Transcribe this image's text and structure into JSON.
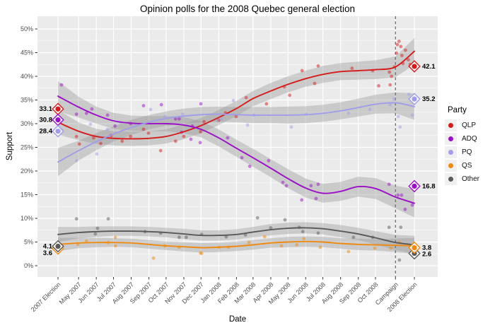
{
  "title": "Opinion polls for the 2008 Quebec general election",
  "x_label": "Date",
  "y_label": "Support",
  "legend": {
    "title": "Party",
    "items": [
      {
        "label": "QLP",
        "color": "#d31d1d"
      },
      {
        "label": "ADQ",
        "color": "#9a10c6"
      },
      {
        "label": "PQ",
        "color": "#a19de8"
      },
      {
        "label": "QS",
        "color": "#ee8a14"
      },
      {
        "label": "Other",
        "color": "#595959"
      }
    ]
  },
  "chart_data": {
    "type": "scatter",
    "title": "Opinion polls for the 2008 Quebec general election",
    "xlabel": "Date",
    "ylabel": "Support",
    "ylim": [
      0,
      50
    ],
    "grid": true,
    "legend_position": "right",
    "panel_bg": "#ebebeb",
    "grid_color": "#ffffff",
    "tick_text_color": "#4d4d4d",
    "ribbon_color": "#999999",
    "ribbon_opacity": 0.4,
    "campaign_line": {
      "t": 0.947,
      "color": "#6e6e6e"
    },
    "y_ticks": [
      {
        "v": 0,
        "label": "0%"
      },
      {
        "v": 5,
        "label": "5%"
      },
      {
        "v": 10,
        "label": "10%"
      },
      {
        "v": 15,
        "label": "15%"
      },
      {
        "v": 20,
        "label": "20%"
      },
      {
        "v": 25,
        "label": "25%"
      },
      {
        "v": 30,
        "label": "30%"
      },
      {
        "v": 35,
        "label": "35%"
      },
      {
        "v": 40,
        "label": "40%"
      },
      {
        "v": 45,
        "label": "45%"
      },
      {
        "v": 50,
        "label": "50%"
      }
    ],
    "x_ticks": [
      {
        "t": 0.0,
        "label": "2007 Election"
      },
      {
        "t": 0.0578,
        "label": "May 2007"
      },
      {
        "t": 0.1075,
        "label": "Jun 2007"
      },
      {
        "t": 0.1557,
        "label": "Jul 2007"
      },
      {
        "t": 0.2054,
        "label": "Aug 2007"
      },
      {
        "t": 0.2552,
        "label": "Sep 2007"
      },
      {
        "t": 0.3034,
        "label": "Oct 2007"
      },
      {
        "t": 0.3531,
        "label": "Nov 2007"
      },
      {
        "t": 0.4013,
        "label": "Dec 2007"
      },
      {
        "t": 0.451,
        "label": "Jan 2008"
      },
      {
        "t": 0.5008,
        "label": "Feb 2008"
      },
      {
        "t": 0.5473,
        "label": "Mar 2008"
      },
      {
        "t": 0.5971,
        "label": "Apr 2008"
      },
      {
        "t": 0.6453,
        "label": "May 2008"
      },
      {
        "t": 0.695,
        "label": "Jun 2008"
      },
      {
        "t": 0.7432,
        "label": "Jul 2008"
      },
      {
        "t": 0.793,
        "label": "Aug 2008"
      },
      {
        "t": 0.8427,
        "label": "Sep 2008"
      },
      {
        "t": 0.8909,
        "label": "Oct 2008"
      },
      {
        "t": 0.947,
        "label": "Campaign"
      },
      {
        "t": 1.0,
        "label": "2008 Election"
      }
    ],
    "series": [
      {
        "name": "QLP",
        "color": "#d31d1d",
        "smooth": [
          30.3,
          28.4,
          27.3,
          26.9,
          26.8,
          26.9,
          27.3,
          28.3,
          29.6,
          31.3,
          33.2,
          35.3,
          36.9,
          38.3,
          39.5,
          40.4,
          41.0,
          41.2,
          41.4,
          42.0,
          45.3
        ],
        "band": [
          2.6,
          1.9,
          1.6,
          1.5,
          1.5,
          1.5,
          1.5,
          1.6,
          1.6,
          1.6,
          1.6,
          1.6,
          1.7,
          1.7,
          1.7,
          1.8,
          1.8,
          1.9,
          2.0,
          2.2,
          2.8
        ],
        "e2007": 33.1,
        "e2008": 42.1,
        "points": [
          [
            0.01,
            28.5
          ],
          [
            0.052,
            27.3
          ],
          [
            0.06,
            25.7
          ],
          [
            0.1,
            27.0
          ],
          [
            0.12,
            25.8
          ],
          [
            0.149,
            27.5
          ],
          [
            0.18,
            26.3
          ],
          [
            0.204,
            27.3
          ],
          [
            0.24,
            28.8
          ],
          [
            0.254,
            28.0
          ],
          [
            0.288,
            24.3
          ],
          [
            0.33,
            26.3
          ],
          [
            0.353,
            27.3
          ],
          [
            0.4,
            28.3
          ],
          [
            0.41,
            30.4
          ],
          [
            0.451,
            30.7
          ],
          [
            0.47,
            32.3
          ],
          [
            0.5,
            31.5
          ],
          [
            0.528,
            35.5
          ],
          [
            0.585,
            34.2
          ],
          [
            0.635,
            37.8
          ],
          [
            0.65,
            36.0
          ],
          [
            0.685,
            41.2
          ],
          [
            0.72,
            38.5
          ],
          [
            0.73,
            42.2
          ],
          [
            0.825,
            41.7
          ],
          [
            0.883,
            41.2
          ],
          [
            0.9,
            38.0
          ],
          [
            0.93,
            40.9
          ],
          [
            0.932,
            38.2
          ],
          [
            0.936,
            40.0
          ],
          [
            0.944,
            42.0
          ],
          [
            0.95,
            44.9
          ],
          [
            0.952,
            46.7
          ],
          [
            0.957,
            47.4
          ],
          [
            0.962,
            46.3
          ],
          [
            0.965,
            44.4
          ],
          [
            0.968,
            42.7
          ],
          [
            0.975,
            45.5
          ],
          [
            0.983,
            43.5
          ],
          [
            0.988,
            42.5
          ]
        ]
      },
      {
        "name": "ADQ",
        "color": "#9a10c6",
        "smooth": [
          35.8,
          33.5,
          31.8,
          30.6,
          30.1,
          30.0,
          30.0,
          29.7,
          28.8,
          27.0,
          24.8,
          22.8,
          20.6,
          18.4,
          16.4,
          15.3,
          15.7,
          16.7,
          16.3,
          14.5,
          13.2
        ],
        "band": [
          3.2,
          2.2,
          1.8,
          1.7,
          1.6,
          1.6,
          1.6,
          1.7,
          1.7,
          1.8,
          1.8,
          1.9,
          1.9,
          2.0,
          2.0,
          2.0,
          2.0,
          2.1,
          2.2,
          2.4,
          3.0
        ],
        "e2007": 30.8,
        "e2008": 16.8,
        "points": [
          [
            0.01,
            38.2
          ],
          [
            0.052,
            32.0
          ],
          [
            0.08,
            32.2
          ],
          [
            0.095,
            33.1
          ],
          [
            0.139,
            31.8
          ],
          [
            0.16,
            29.5
          ],
          [
            0.204,
            30.0
          ],
          [
            0.24,
            33.8
          ],
          [
            0.29,
            34.0
          ],
          [
            0.33,
            31.0
          ],
          [
            0.34,
            31.0
          ],
          [
            0.347,
            28.2
          ],
          [
            0.373,
            26.7
          ],
          [
            0.377,
            29.5
          ],
          [
            0.399,
            26.0
          ],
          [
            0.401,
            34.2
          ],
          [
            0.476,
            27.0
          ],
          [
            0.516,
            22.8
          ],
          [
            0.538,
            21.0
          ],
          [
            0.591,
            22.2
          ],
          [
            0.631,
            17.6
          ],
          [
            0.641,
            16.9
          ],
          [
            0.684,
            13.9
          ],
          [
            0.71,
            16.9
          ],
          [
            0.724,
            14.2
          ],
          [
            0.73,
            17.2
          ],
          [
            0.929,
            17.2
          ],
          [
            0.954,
            14.9
          ],
          [
            0.964,
            14.9
          ],
          [
            0.974,
            11.9
          ],
          [
            0.994,
            12.8
          ]
        ]
      },
      {
        "name": "PQ",
        "color": "#a19de8",
        "smooth": [
          21.9,
          24.3,
          26.2,
          27.8,
          29.2,
          30.3,
          31.1,
          31.6,
          31.9,
          32.0,
          31.9,
          31.8,
          31.8,
          31.8,
          31.9,
          32.2,
          32.7,
          33.4,
          34.1,
          34.4,
          33.6
        ],
        "band": [
          3.0,
          2.1,
          1.8,
          1.6,
          1.6,
          1.5,
          1.5,
          1.6,
          1.6,
          1.6,
          1.6,
          1.7,
          1.7,
          1.8,
          1.8,
          1.8,
          1.8,
          1.9,
          2.0,
          2.2,
          2.8
        ],
        "e2007": 28.4,
        "e2008": 35.2,
        "points": [
          [
            0.052,
            22.2
          ],
          [
            0.091,
            29.9
          ],
          [
            0.109,
            23.6
          ],
          [
            0.139,
            28.8
          ],
          [
            0.175,
            30.3
          ],
          [
            0.26,
            33.0
          ],
          [
            0.3,
            31.5
          ],
          [
            0.35,
            32.0
          ],
          [
            0.448,
            30.7
          ],
          [
            0.46,
            31.0
          ],
          [
            0.492,
            34.9
          ],
          [
            0.532,
            29.7
          ],
          [
            0.55,
            31.8
          ],
          [
            0.655,
            29.3
          ],
          [
            0.696,
            32.0
          ],
          [
            0.815,
            32.2
          ],
          [
            0.875,
            33.0
          ],
          [
            0.932,
            34.0
          ],
          [
            0.943,
            35.2
          ],
          [
            0.955,
            31.5
          ],
          [
            0.96,
            29.3
          ],
          [
            0.985,
            36.2
          ],
          [
            0.994,
            31.8
          ]
        ]
      },
      {
        "name": "QS",
        "color": "#ee8a14",
        "smooth": [
          4.5,
          4.8,
          4.9,
          4.9,
          4.8,
          4.5,
          4.2,
          4.0,
          3.8,
          3.9,
          4.1,
          4.4,
          4.8,
          5.0,
          5.1,
          5.0,
          4.7,
          4.5,
          4.4,
          4.3,
          4.2
        ],
        "band": [
          1.4,
          1.1,
          1.0,
          0.9,
          0.9,
          0.9,
          0.9,
          1.0,
          1.0,
          1.0,
          1.0,
          1.0,
          1.0,
          1.1,
          1.1,
          1.1,
          1.1,
          1.2,
          1.2,
          1.4,
          1.7
        ],
        "e2007": 3.6,
        "e2008": 3.8,
        "points": [
          [
            0.056,
            4.5
          ],
          [
            0.08,
            5.2
          ],
          [
            0.141,
            4.9
          ],
          [
            0.161,
            6.0
          ],
          [
            0.161,
            4.2
          ],
          [
            0.268,
            1.6
          ],
          [
            0.3,
            4.2
          ],
          [
            0.34,
            3.9
          ],
          [
            0.4,
            2.7
          ],
          [
            0.403,
            2.6
          ],
          [
            0.452,
            3.9
          ],
          [
            0.478,
            3.9
          ],
          [
            0.536,
            4.9
          ],
          [
            0.58,
            6.1
          ],
          [
            0.627,
            4.2
          ],
          [
            0.67,
            4.4
          ],
          [
            0.69,
            5.7
          ],
          [
            0.736,
            3.9
          ],
          [
            0.815,
            3.0
          ],
          [
            0.889,
            3.7
          ],
          [
            0.934,
            3.7
          ],
          [
            0.958,
            4.9
          ]
        ]
      },
      {
        "name": "Other",
        "color": "#595959",
        "smooth": [
          6.6,
          7.0,
          7.2,
          7.3,
          7.3,
          7.2,
          7.0,
          6.7,
          6.4,
          6.4,
          6.6,
          7.1,
          7.6,
          7.9,
          8.0,
          7.8,
          7.3,
          6.7,
          5.9,
          4.9,
          4.4
        ],
        "band": [
          1.6,
          1.2,
          1.1,
          1.0,
          1.0,
          1.0,
          1.0,
          1.1,
          1.1,
          1.1,
          1.1,
          1.1,
          1.2,
          1.2,
          1.2,
          1.2,
          1.3,
          1.3,
          1.4,
          1.6,
          1.9
        ],
        "e2007": 4.1,
        "e2008": 2.6,
        "points": [
          [
            0.052,
            9.9
          ],
          [
            0.105,
            6.7
          ],
          [
            0.111,
            7.9
          ],
          [
            0.141,
            9.9
          ],
          [
            0.244,
            7.2
          ],
          [
            0.288,
            6.9
          ],
          [
            0.34,
            6.0
          ],
          [
            0.36,
            6.0
          ],
          [
            0.403,
            6.6
          ],
          [
            0.472,
            6.1
          ],
          [
            0.526,
            6.5
          ],
          [
            0.56,
            10.1
          ],
          [
            0.597,
            8.0
          ],
          [
            0.637,
            9.7
          ],
          [
            0.677,
            8.1
          ],
          [
            0.687,
            7.2
          ],
          [
            0.73,
            6.9
          ],
          [
            0.829,
            6.0
          ],
          [
            0.883,
            6.0
          ],
          [
            0.929,
            8.1
          ],
          [
            0.958,
            1.2
          ],
          [
            0.962,
            8.1
          ]
        ]
      }
    ],
    "marker_order_2007": [
      "QLP",
      "ADQ",
      "PQ",
      "QS",
      "Other"
    ],
    "marker_order_2008": [
      "QLP",
      "ADQ",
      "PQ",
      "Other",
      "QS"
    ],
    "value_labels": [
      {
        "series": "QLP",
        "side": "left",
        "v": 33.1,
        "text": "33.1",
        "dy": 0
      },
      {
        "series": "ADQ",
        "side": "left",
        "v": 30.8,
        "text": "30.8",
        "dy": 0
      },
      {
        "series": "PQ",
        "side": "left",
        "v": 28.4,
        "text": "28.4",
        "dy": 0
      },
      {
        "series": "Other",
        "side": "left",
        "v": 4.1,
        "text": "4.1",
        "dy": 0
      },
      {
        "series": "QS",
        "side": "left",
        "v": 3.6,
        "text": "3.6",
        "dy": 6
      },
      {
        "series": "QLP",
        "side": "right",
        "v": 42.1,
        "text": "42.1",
        "dy": 0
      },
      {
        "series": "PQ",
        "side": "right",
        "v": 35.2,
        "text": "35.2",
        "dy": 0
      },
      {
        "series": "ADQ",
        "side": "right",
        "v": 16.8,
        "text": "16.8",
        "dy": 0
      },
      {
        "series": "QS",
        "side": "right",
        "v": 3.8,
        "text": "3.8",
        "dy": 0
      },
      {
        "series": "Other",
        "side": "right",
        "v": 2.6,
        "text": "2.6",
        "dy": 1
      }
    ]
  }
}
